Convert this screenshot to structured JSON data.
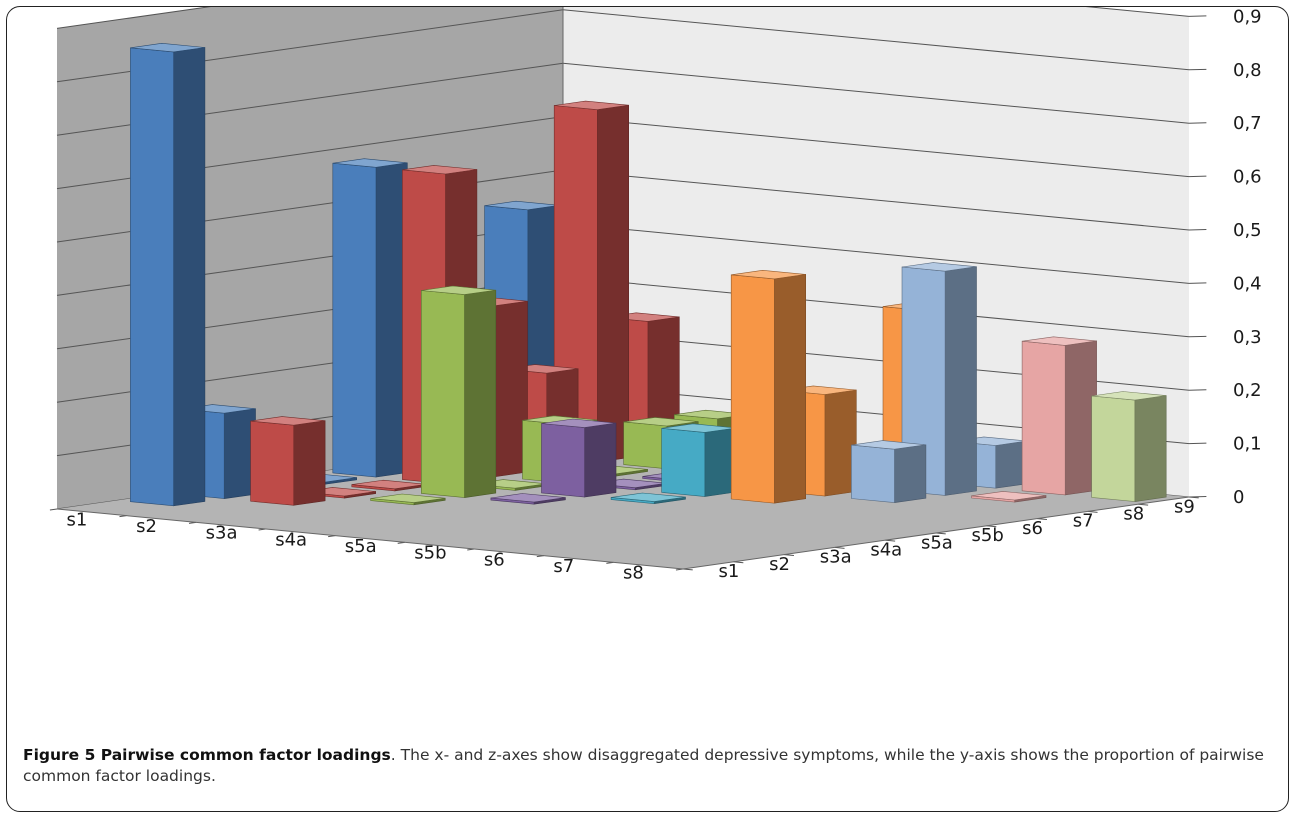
{
  "caption": {
    "label": "Figure 5 Pairwise common factor loadings",
    "text": ". The x- and z-axes show disaggregated depressive symptoms, while the y-axis shows the proportion of pairwise common factor loadings."
  },
  "chart_data": {
    "type": "bar3d",
    "title": "",
    "xlabel": "",
    "ylabel": "",
    "zlabel": "",
    "x_categories": [
      "s9",
      "s8",
      "s7",
      "s6",
      "s5b",
      "s5a",
      "s4a",
      "s3a",
      "s2",
      "s1"
    ],
    "z_categories": [
      "s1",
      "s2",
      "s3a",
      "s4a",
      "s5a",
      "s5b",
      "s6",
      "s7",
      "s8"
    ],
    "y_ticks": [
      "0",
      "0,1",
      "0,2",
      "0,3",
      "0,4",
      "0,5",
      "0,6",
      "0,7",
      "0,8",
      "0,9"
    ],
    "ylim": [
      0,
      0.9
    ],
    "grid": true,
    "series_colors": {
      "s1": "#4a7ebb",
      "s2": "#be4b48",
      "s3a": "#98b954",
      "s4a": "#7d60a0",
      "s5a": "#46aac5",
      "s5b": "#f79646",
      "s6": "#95b3d7",
      "s7": "#e6a5a4",
      "s8": "#c3d69b"
    },
    "bars": [
      {
        "x": "s2",
        "series": "s1",
        "value": 0.85
      },
      {
        "x": "s3a",
        "series": "s1",
        "value": 0.16
      },
      {
        "x": "s4a",
        "series": "s1",
        "value": 0.0
      },
      {
        "x": "s5a",
        "series": "s1",
        "value": 0.0
      },
      {
        "x": "s5b",
        "series": "s1",
        "value": 0.58
      },
      {
        "x": "s6",
        "series": "s1",
        "value": 0.31
      },
      {
        "x": "s7",
        "series": "s1",
        "value": 0.15
      },
      {
        "x": "s8",
        "series": "s1",
        "value": 0.46
      },
      {
        "x": "s9",
        "series": "s1",
        "value": 0.26
      },
      {
        "x": "s3a",
        "series": "s2",
        "value": 0.15
      },
      {
        "x": "s4a",
        "series": "s2",
        "value": 0.0
      },
      {
        "x": "s5a",
        "series": "s2",
        "value": 0.0
      },
      {
        "x": "s5b",
        "series": "s2",
        "value": 0.58
      },
      {
        "x": "s6",
        "series": "s2",
        "value": 0.32
      },
      {
        "x": "s7",
        "series": "s2",
        "value": 0.18
      },
      {
        "x": "s8",
        "series": "s2",
        "value": 0.66
      },
      {
        "x": "s9",
        "series": "s2",
        "value": 0.25
      },
      {
        "x": "s4a",
        "series": "s3a",
        "value": 0.0
      },
      {
        "x": "s5a",
        "series": "s3a",
        "value": 0.38
      },
      {
        "x": "s5b",
        "series": "s3a",
        "value": 0.0
      },
      {
        "x": "s6",
        "series": "s3a",
        "value": 0.11
      },
      {
        "x": "s7",
        "series": "s3a",
        "value": 0.0
      },
      {
        "x": "s8",
        "series": "s3a",
        "value": 0.08
      },
      {
        "x": "s9",
        "series": "s3a",
        "value": 0.08
      },
      {
        "x": "s5a",
        "series": "s4a",
        "value": 0.0
      },
      {
        "x": "s5b",
        "series": "s4a",
        "value": 0.13
      },
      {
        "x": "s6",
        "series": "s4a",
        "value": 0.0
      },
      {
        "x": "s7",
        "series": "s4a",
        "value": 0.0
      },
      {
        "x": "s8",
        "series": "s4a",
        "value": 0.0
      },
      {
        "x": "s9",
        "series": "s4a",
        "value": 0.05
      },
      {
        "x": "s5b",
        "series": "s5a",
        "value": 0.0
      },
      {
        "x": "s6",
        "series": "s5a",
        "value": 0.12
      },
      {
        "x": "s7",
        "series": "s5a",
        "value": 0.0
      },
      {
        "x": "s8",
        "series": "s5a",
        "value": 0.0
      },
      {
        "x": "s9",
        "series": "s5a",
        "value": 0.0
      },
      {
        "x": "s6",
        "series": "s5b",
        "value": 0.42
      },
      {
        "x": "s7",
        "series": "s5b",
        "value": 0.19
      },
      {
        "x": "s8",
        "series": "s5b",
        "value": 0.0
      },
      {
        "x": "s9",
        "series": "s5b",
        "value": 0.32
      },
      {
        "x": "s7",
        "series": "s6",
        "value": 0.1
      },
      {
        "x": "s8",
        "series": "s6",
        "value": 0.42
      },
      {
        "x": "s9",
        "series": "s6",
        "value": 0.08
      },
      {
        "x": "s8",
        "series": "s7",
        "value": 0.0
      },
      {
        "x": "s9",
        "series": "s7",
        "value": 0.28
      },
      {
        "x": "s9",
        "series": "s8",
        "value": 0.19
      }
    ]
  }
}
